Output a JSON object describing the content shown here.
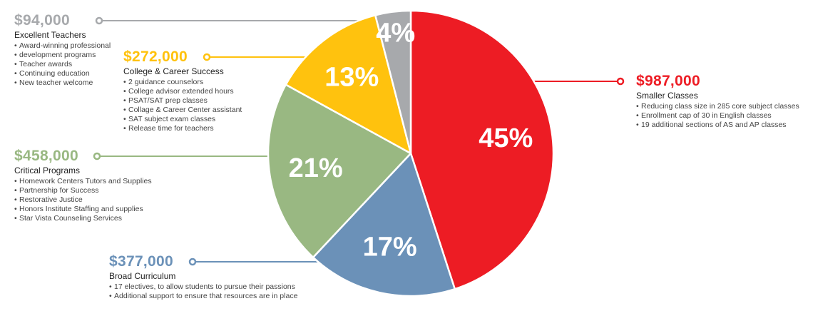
{
  "colors": {
    "red": "#ED1C24",
    "blue": "#6B91B8",
    "green": "#99B882",
    "gold": "#FFC20E",
    "gray": "#A7A9AC"
  },
  "chart_data": {
    "type": "pie",
    "title": "",
    "slices": [
      {
        "label": "Smaller Classes",
        "value": 45,
        "value_label": "45%",
        "amount": "$987,000",
        "color": "#ED1C24"
      },
      {
        "label": "Broad Curriculum",
        "value": 17,
        "value_label": "17%",
        "amount": "$377,000",
        "color": "#6B91B8"
      },
      {
        "label": "Critical Programs",
        "value": 21,
        "value_label": "21%",
        "amount": "$458,000",
        "color": "#99B882"
      },
      {
        "label": "College & Career Success",
        "value": 13,
        "value_label": "13%",
        "amount": "$272,000",
        "color": "#FFC20E"
      },
      {
        "label": "Excellent Teachers",
        "value": 4,
        "value_label": "4%",
        "amount": "$94,000",
        "color": "#A7A9AC"
      }
    ]
  },
  "callouts": {
    "teachers": {
      "amount": "$94,000",
      "category": "Excellent Teachers",
      "bullets": [
        "Award-winning professional",
        "development programs",
        "Teacher awards",
        "Continuing education",
        "New teacher welcome"
      ]
    },
    "college": {
      "amount": "$272,000",
      "category": "College & Career Success",
      "bullets": [
        "2 guidance counselors",
        "College advisor extended hours",
        "PSAT/SAT prep classes",
        "Collage & Career Center assistant",
        "SAT subject exam classes",
        "Release time for teachers"
      ]
    },
    "critical": {
      "amount": "$458,000",
      "category": "Critical Programs",
      "bullets": [
        "Homework Centers Tutors and Supplies",
        "Partnership for Success",
        "Restorative Justice",
        "Honors Institute Staffing and supplies",
        "Star Vista Counseling Services"
      ]
    },
    "curriculum": {
      "amount": "$377,000",
      "category": "Broad Curriculum",
      "bullets": [
        "17 electives, to allow students to pursue their passions",
        "Additional support to ensure that resources are in place"
      ]
    },
    "classes": {
      "amount": "$987,000",
      "category": "Smaller Classes",
      "bullets": [
        "Reducing class size in 285 core subject classes",
        "Enrollment cap of 30 in English classes",
        "19 additional sections of AS and AP classes"
      ]
    }
  }
}
